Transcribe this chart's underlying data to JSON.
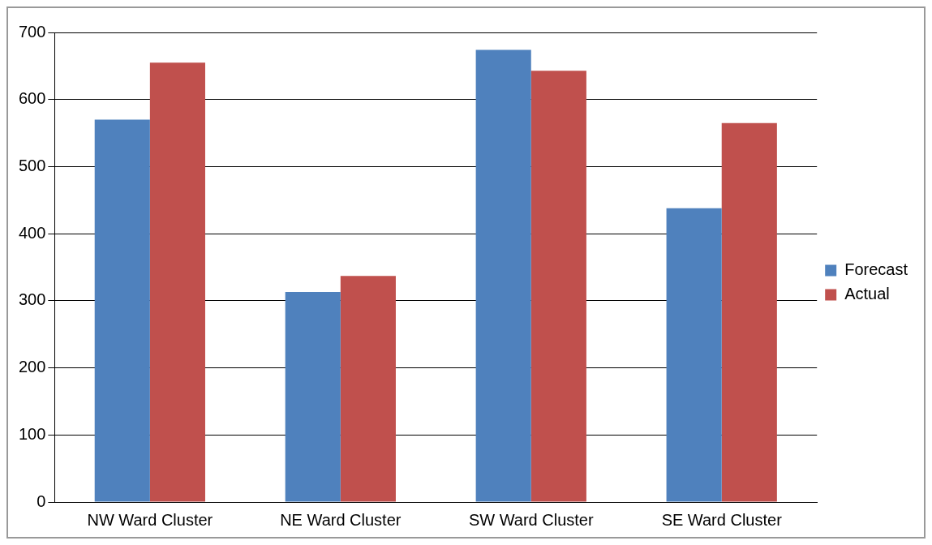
{
  "chart_data": {
    "type": "bar",
    "categories": [
      "NW Ward Cluster",
      "NE Ward Cluster",
      "SW Ward Cluster",
      "SE Ward Cluster"
    ],
    "series": [
      {
        "name": "Forecast",
        "color": "#4f81bd",
        "values": [
          570,
          313,
          674,
          438
        ]
      },
      {
        "name": "Actual",
        "color": "#c0504d",
        "values": [
          655,
          337,
          643,
          565
        ]
      }
    ],
    "ylim": [
      0,
      700
    ],
    "yticks": [
      0,
      100,
      200,
      300,
      400,
      500,
      600,
      700
    ],
    "grid": "y",
    "legend": "right"
  }
}
